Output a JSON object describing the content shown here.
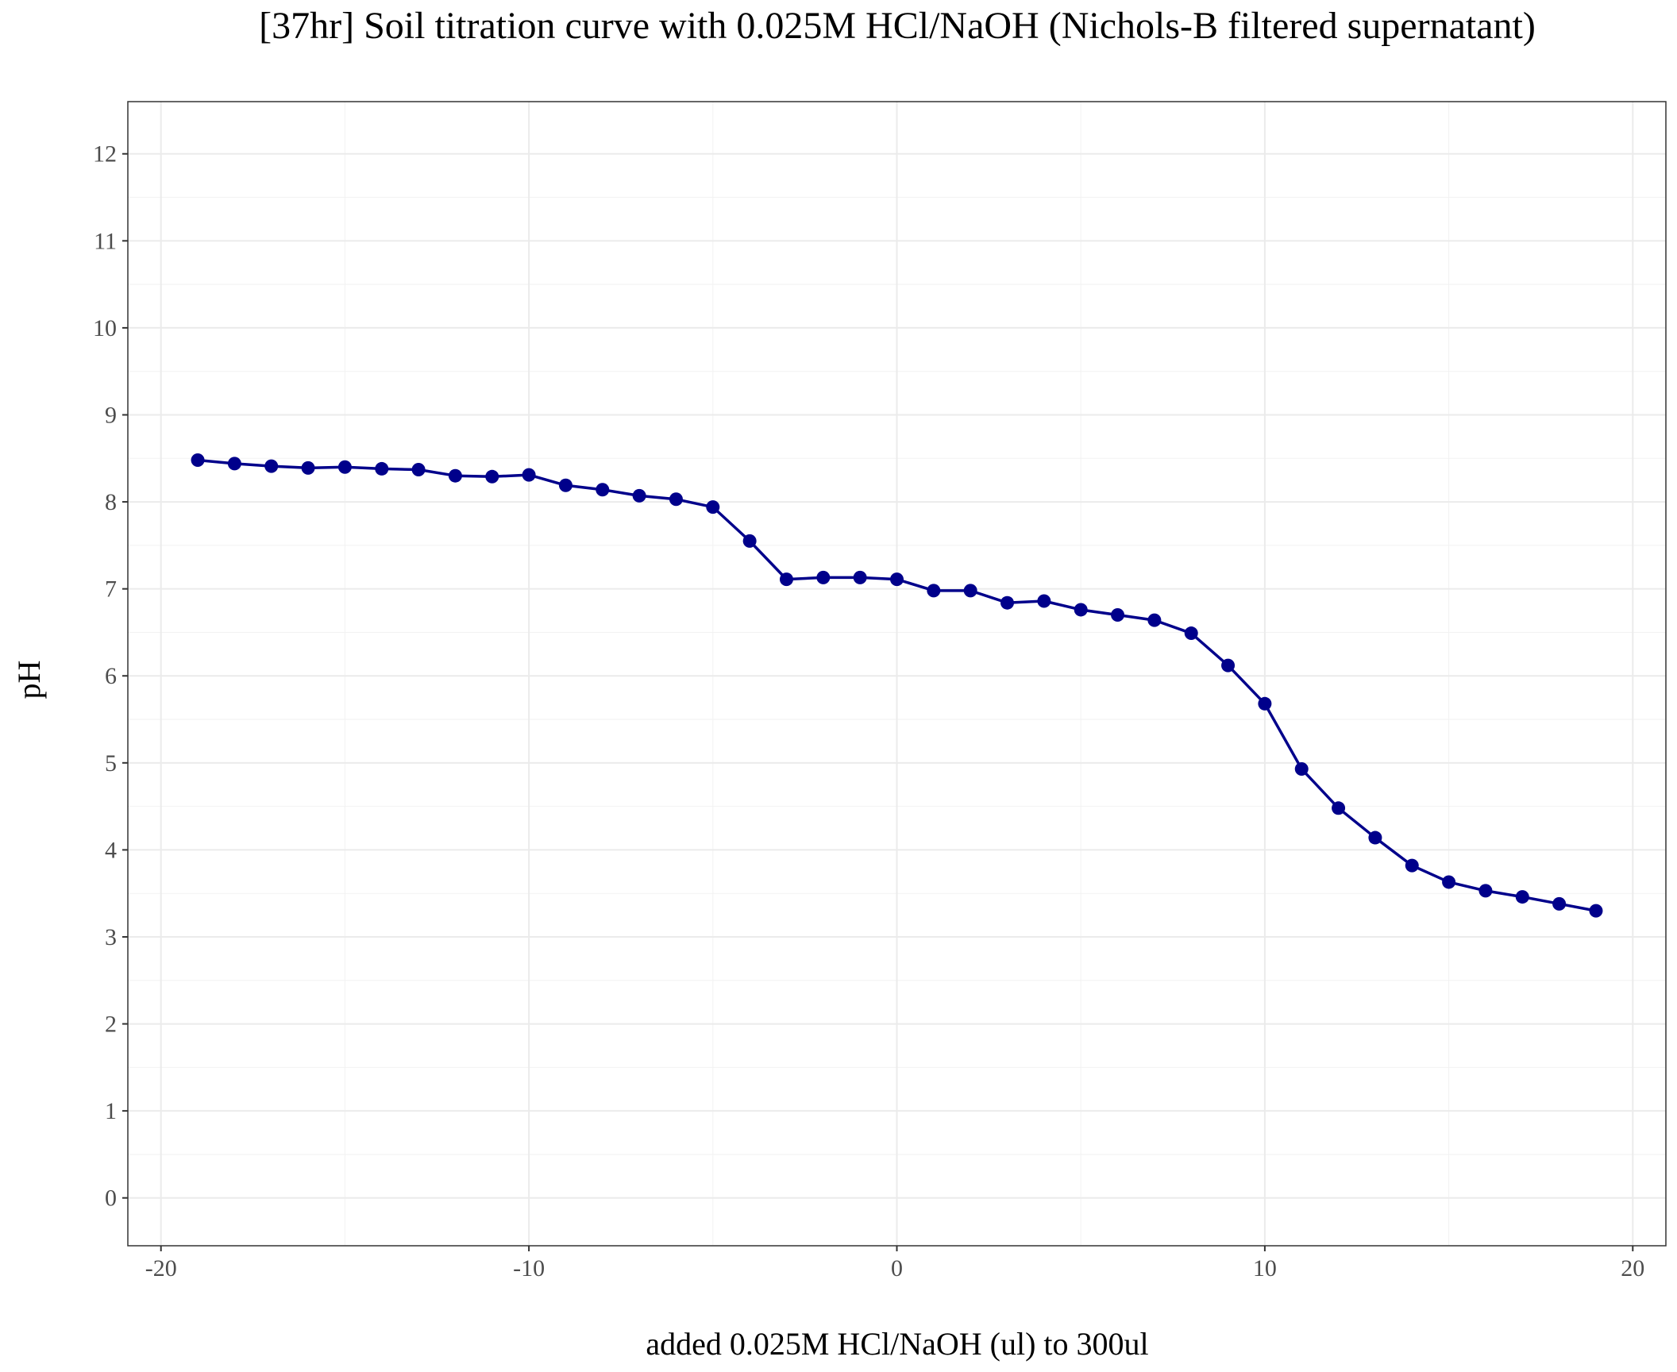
{
  "chart_data": {
    "type": "line",
    "title": "[37hr] Soil titration curve with 0.025M HCl/NaOH (Nichols-B filtered supernatant)",
    "xlabel": "added 0.025M HCl/NaOH (ul) to 300ul",
    "ylabel": "pH",
    "xlim": [
      -20.9,
      20.9
    ],
    "ylim": [
      -0.55,
      12.6
    ],
    "x_ticks": [
      -20,
      -10,
      0,
      10,
      20
    ],
    "x_tick_labels": [
      "-20",
      "-10",
      "0",
      "10",
      "20"
    ],
    "y_ticks": [
      0,
      1,
      2,
      3,
      4,
      5,
      6,
      7,
      8,
      9,
      10,
      11,
      12
    ],
    "y_tick_labels": [
      "0",
      "1",
      "2",
      "3",
      "4",
      "5",
      "6",
      "7",
      "8",
      "9",
      "10",
      "11",
      "12"
    ],
    "grid": true,
    "series": [
      {
        "color": "#00008B",
        "x": [
          -19,
          -18,
          -17,
          -16,
          -15,
          -14,
          -13,
          -12,
          -11,
          -10,
          -9,
          -8,
          -7,
          -6,
          -5,
          -4,
          -3,
          -2,
          -1,
          0,
          1,
          2,
          3,
          4,
          5,
          6,
          7,
          8,
          9,
          10,
          11,
          12,
          13,
          14,
          15,
          16,
          17,
          18,
          19
        ],
        "y": [
          8.48,
          8.44,
          8.41,
          8.39,
          8.4,
          8.38,
          8.37,
          8.3,
          8.29,
          8.31,
          8.19,
          8.14,
          8.07,
          8.03,
          7.94,
          7.55,
          7.11,
          7.13,
          7.13,
          7.11,
          6.98,
          6.98,
          6.84,
          6.86,
          6.76,
          6.7,
          6.64,
          6.49,
          6.12,
          5.68,
          4.93,
          4.48,
          4.14,
          3.82,
          3.63,
          3.53,
          3.46,
          3.38,
          3.3
        ]
      }
    ]
  }
}
